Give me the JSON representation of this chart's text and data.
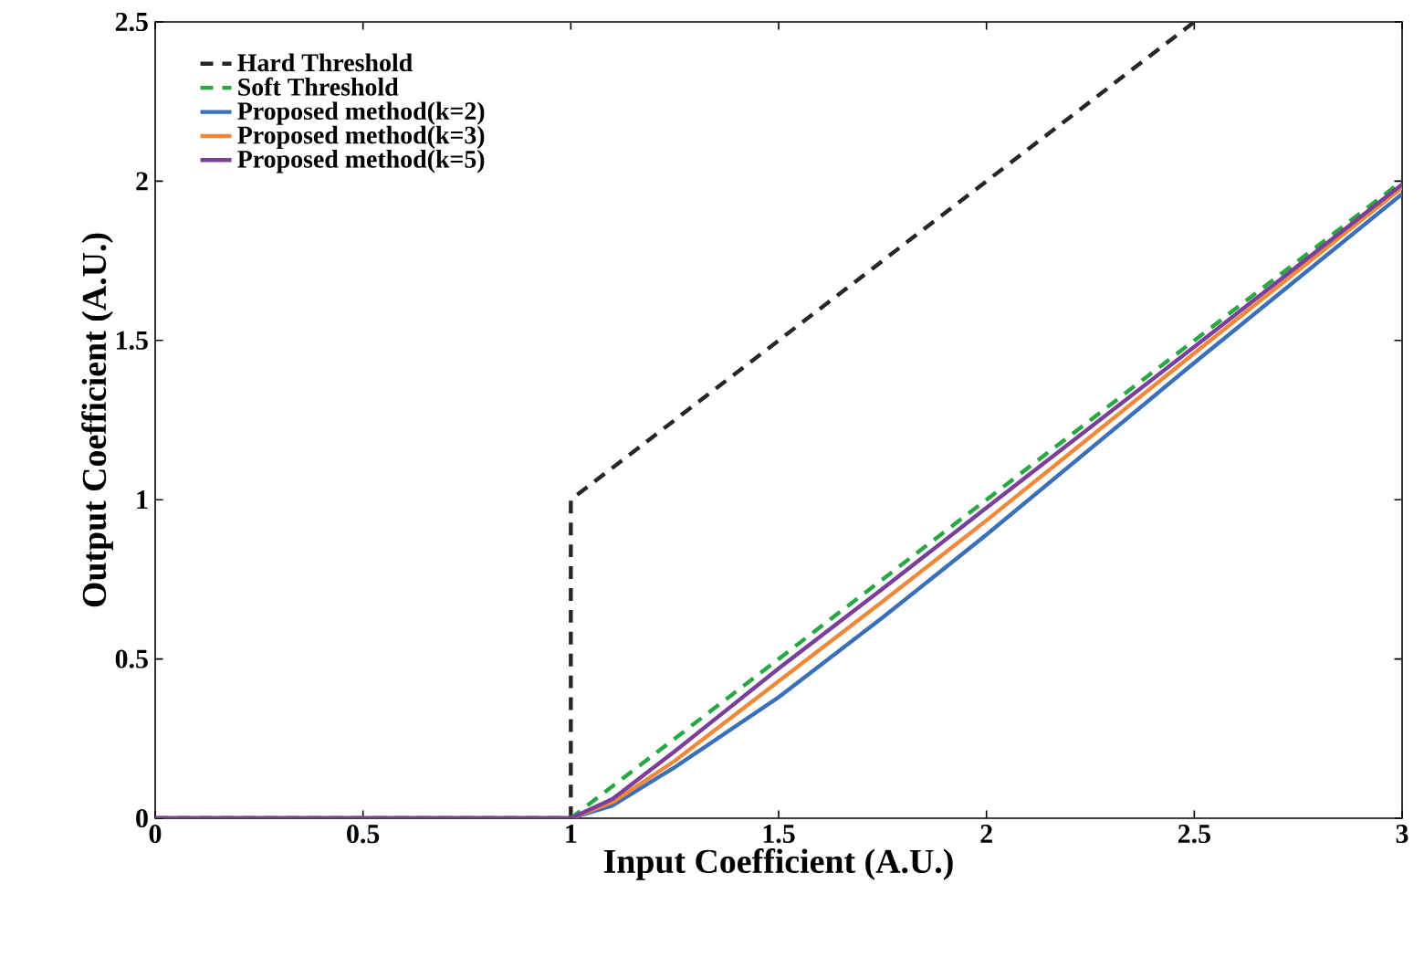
{
  "chart_data": {
    "type": "line",
    "xlabel": "Input Coefficient (A.U.)",
    "ylabel": "Output Coefficient (A.U.)",
    "xlim": [
      0,
      3
    ],
    "ylim": [
      0,
      2.5
    ],
    "xticks": [
      0,
      0.5,
      1,
      1.5,
      2,
      2.5,
      3
    ],
    "yticks": [
      0,
      0.5,
      1,
      1.5,
      2,
      2.5
    ],
    "legend": "top left",
    "grid": false,
    "series": [
      {
        "name": "Hard Threshold",
        "color": "#262626",
        "line_style": "dashed",
        "x": [
          0,
          1,
          1,
          2.5
        ],
        "values": [
          0,
          0,
          1,
          2.5
        ]
      },
      {
        "name": "Soft Threshold",
        "color": "#27a845",
        "line_style": "dashed",
        "x": [
          0,
          1,
          3
        ],
        "values": [
          0,
          0,
          2
        ]
      },
      {
        "name": "Proposed method(k=2)",
        "color": "#3a6fb9",
        "line_style": "solid",
        "x": [
          0,
          1,
          1.1,
          1.25,
          1.5,
          1.75,
          2,
          2.5,
          3
        ],
        "values": [
          0,
          0,
          0.04,
          0.16,
          0.38,
          0.63,
          0.89,
          1.43,
          1.96
        ]
      },
      {
        "name": "Proposed method(k=3)",
        "color": "#f0883a",
        "line_style": "solid",
        "x": [
          0,
          1,
          1.1,
          1.25,
          1.5,
          1.75,
          2,
          2.5,
          3
        ],
        "values": [
          0,
          0,
          0.05,
          0.18,
          0.43,
          0.68,
          0.935,
          1.46,
          1.98
        ]
      },
      {
        "name": "Proposed method(k=5)",
        "color": "#7a3f98",
        "line_style": "solid",
        "x": [
          0,
          1,
          1.1,
          1.25,
          1.5,
          1.75,
          2,
          2.5,
          3
        ],
        "values": [
          0,
          0,
          0.06,
          0.21,
          0.47,
          0.72,
          0.975,
          1.48,
          1.99
        ]
      }
    ]
  }
}
